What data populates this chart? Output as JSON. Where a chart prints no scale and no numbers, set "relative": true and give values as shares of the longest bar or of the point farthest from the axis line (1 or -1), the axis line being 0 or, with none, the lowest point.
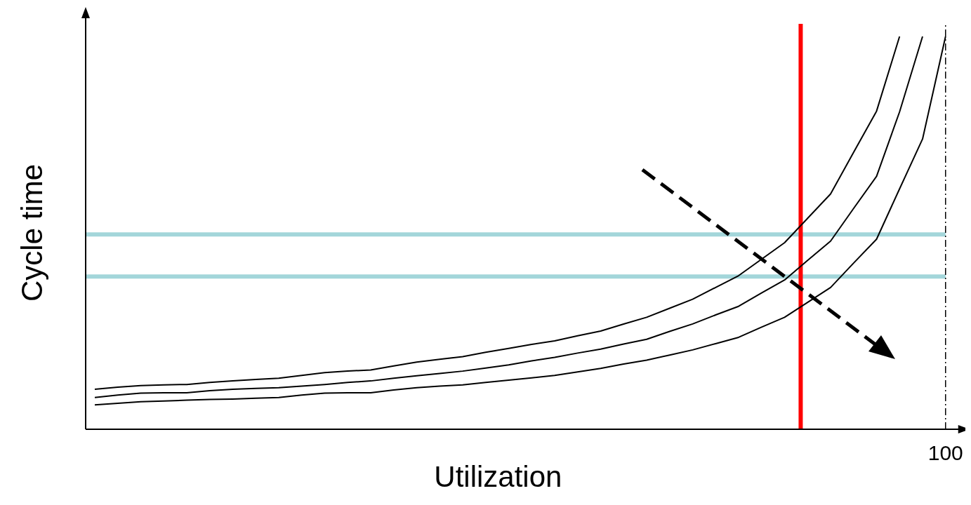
{
  "chart_data": {
    "type": "line",
    "xlabel": "Utilization",
    "ylabel": "Cycle time",
    "relative": true,
    "annotations": [
      "100"
    ],
    "marker": "none",
    "line_style": "solid",
    "categories": [
      null,
      null,
      null,
      null,
      null,
      null,
      null,
      null,
      null,
      null,
      null,
      null,
      null,
      null,
      null,
      null,
      null,
      null,
      null,
      null,
      null,
      null,
      null,
      null,
      null,
      null,
      null,
      null,
      null,
      null,
      null,
      null,
      null,
      null,
      null,
      null,
      null,
      null
    ],
    "series": [
      {
        "color": "#000000",
        "values": [
          0.102,
          0.107,
          0.111,
          0.113,
          0.114,
          0.119,
          0.123,
          0.127,
          0.13,
          0.137,
          0.144,
          0.148,
          0.151,
          0.161,
          0.171,
          0.178,
          0.185,
          0.196,
          0.206,
          0.216,
          0.225,
          0.238,
          0.25,
          0.268,
          0.285,
          0.308,
          0.331,
          0.361,
          0.391,
          0.433,
          0.475,
          0.537,
          0.599,
          0.705,
          0.81,
          1,
          null,
          null
        ]
      },
      {
        "color": "#000000",
        "values": [
          0.081,
          0.087,
          0.092,
          0.093,
          0.093,
          0.098,
          0.102,
          0.104,
          0.106,
          0.11,
          0.114,
          0.119,
          0.123,
          0.13,
          0.136,
          0.142,
          0.148,
          0.156,
          0.164,
          0.174,
          0.183,
          0.194,
          0.204,
          0.217,
          0.229,
          0.249,
          0.268,
          0.291,
          0.313,
          0.347,
          0.38,
          0.43,
          0.479,
          0.562,
          0.644,
          0.808,
          1,
          null
        ]
      },
      {
        "color": "#000000",
        "values": [
          0.062,
          0.066,
          0.07,
          0.072,
          0.074,
          0.076,
          0.077,
          0.079,
          0.081,
          0.087,
          0.092,
          0.093,
          0.093,
          0.1,
          0.106,
          0.11,
          0.113,
          0.119,
          0.125,
          0.131,
          0.137,
          0.146,
          0.155,
          0.166,
          0.176,
          0.189,
          0.202,
          0.218,
          0.234,
          0.26,
          0.285,
          0.323,
          0.361,
          0.423,
          0.484,
          0.612,
          0.739,
          1
        ]
      }
    ],
    "ref_lines": [
      {
        "axis": "y",
        "value": 0.496,
        "color": "#a3d6da",
        "line_style": "solid"
      },
      {
        "axis": "y",
        "value": 0.389,
        "color": "#a3d6da",
        "line_style": "solid"
      }
    ]
  }
}
